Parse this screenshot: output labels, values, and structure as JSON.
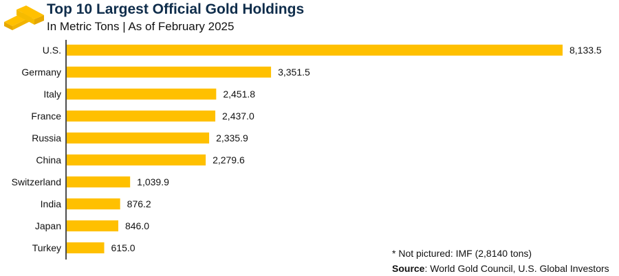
{
  "chart_data": {
    "type": "bar",
    "orientation": "horizontal",
    "title": "Top 10 Largest Official Gold Holdings",
    "subtitle": "In Metric Tons | As of February 2025",
    "categories": [
      "U.S.",
      "Germany",
      "Italy",
      "France",
      "Russia",
      "China",
      "Switzerland",
      "India",
      "Japan",
      "Turkey"
    ],
    "values": [
      8133.5,
      3351.5,
      2451.8,
      2437.0,
      2335.9,
      2279.6,
      1039.9,
      876.2,
      846.0,
      615.0
    ],
    "data_labels": [
      "8,133.5",
      "3,351.5",
      "2,451.8",
      "2,437.0",
      "2,335.9",
      "2,279.6",
      "1,039.9",
      "876.2",
      "846.0",
      "615.0"
    ],
    "xlim": [
      0,
      8133.5
    ],
    "grid": false,
    "bar_color": "#FFC000"
  },
  "footnote": "* Not pictured: IMF (2,8140 tons)",
  "source_label": "Source",
  "source_text": ": World Gold Council, U.S. Global Investors",
  "colors": {
    "title": "#0f2d4b",
    "gold": "#FFC000"
  }
}
